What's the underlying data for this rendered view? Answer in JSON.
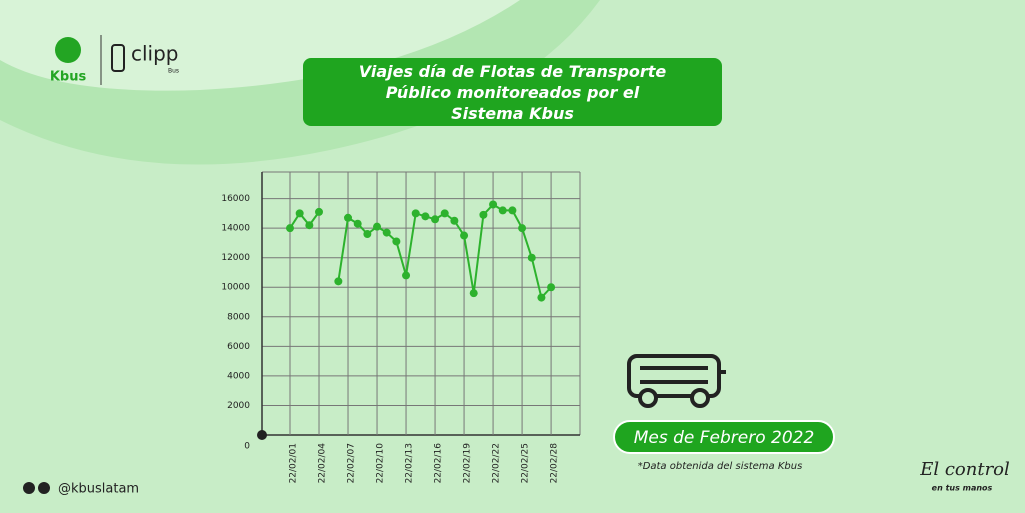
{
  "chart_data": {
    "type": "line",
    "title": "Viajes día de Flotas de Transporte Público monitoreados por el Sistema Kbus",
    "categories": [
      "22/02/01",
      null,
      null,
      "22/02/04",
      null,
      null,
      "22/02/07",
      null,
      null,
      "22/02/10",
      null,
      null,
      "22/02/13",
      null,
      null,
      "22/02/16",
      null,
      null,
      "22/02/19",
      null,
      null,
      "22/02/22",
      null,
      null,
      "22/02/25",
      null,
      null,
      "22/02/28"
    ],
    "series": [
      {
        "name": "Viajes",
        "color": "#2db22d",
        "values": [
          14000,
          15000,
          14200,
          15100,
          null,
          10400,
          14700,
          14300,
          13600,
          14100,
          13700,
          13100,
          10800,
          15000,
          14800,
          14600,
          15000,
          14500,
          13500,
          9600,
          14900,
          15600,
          15200,
          15200,
          14000,
          12000,
          9300,
          10000
        ]
      }
    ],
    "ylim": [
      0,
      17800
    ],
    "yticks": [
      0,
      2000,
      4000,
      6000,
      8000,
      10000,
      12000,
      14000,
      16000
    ],
    "grid": true,
    "period": "Mes de Febrero 2022",
    "source": "*Data obtenida del sistema Kbus"
  },
  "brand": {
    "kbus": "Kbus",
    "clipp": "clipp",
    "clipp_sub": "Bus",
    "handle": "@kbuslatam",
    "slogan": "El control",
    "slogan_sub": "en tus manos"
  }
}
